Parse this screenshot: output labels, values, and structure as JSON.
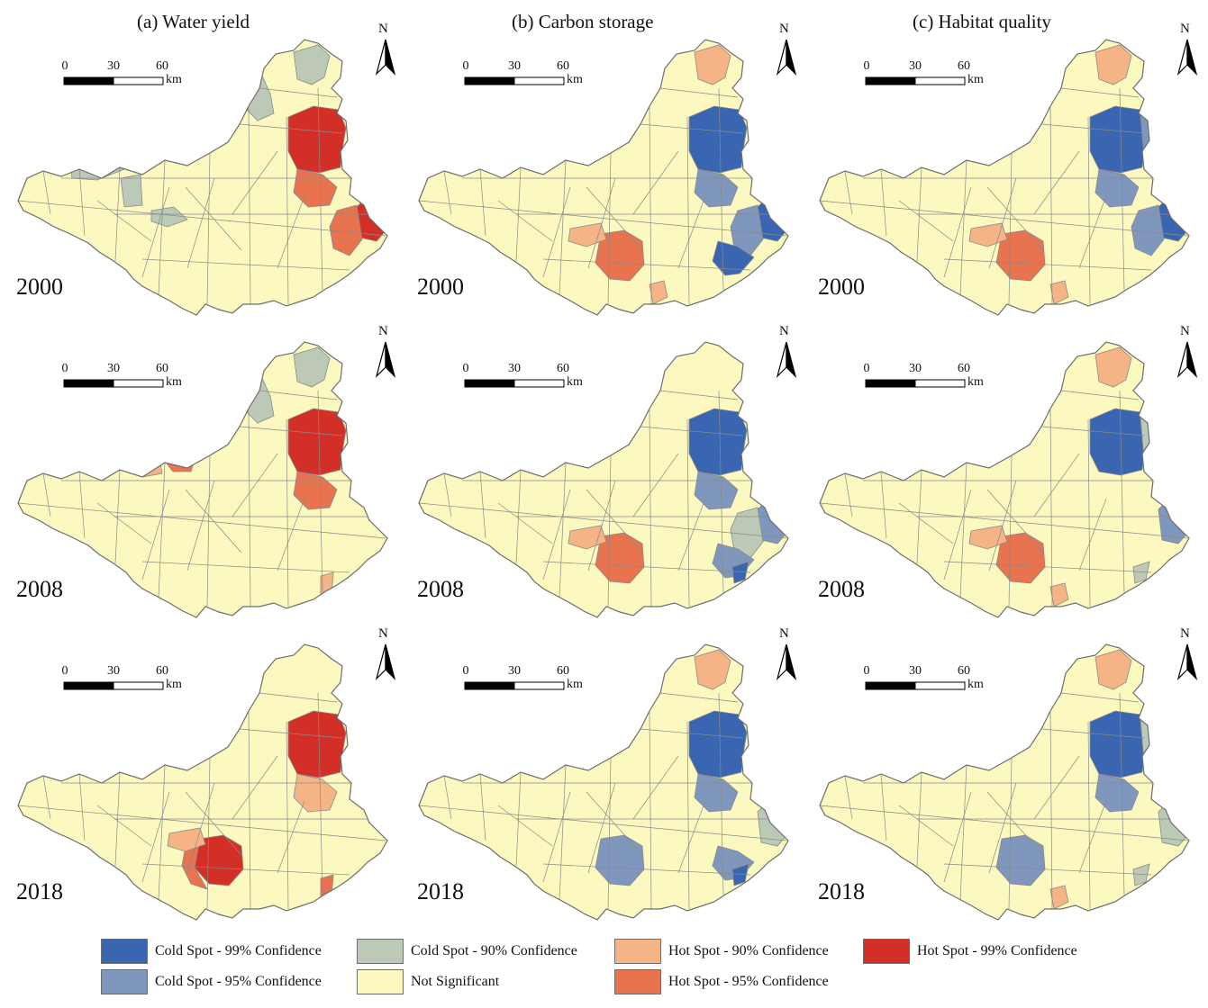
{
  "columns": [
    {
      "title": "(a) Water yield"
    },
    {
      "title": "(b) Carbon storage"
    },
    {
      "title": "(c) Habitat quality"
    }
  ],
  "years": [
    "2000",
    "2008",
    "2018"
  ],
  "scale_bar": {
    "ticks": [
      "0",
      "30",
      "60"
    ],
    "unit": "km"
  },
  "north_label": "N",
  "colors": {
    "cold99": "#3a65b0",
    "cold95": "#7f97bd",
    "cold90": "#bcc9b6",
    "ns": "#fbf8c0",
    "hot90": "#f5b486",
    "hot95": "#e8734f",
    "hot99": "#d42f27",
    "border": "#8a8a8a"
  },
  "legend": [
    {
      "key": "cold99",
      "label": "Cold Spot - 99% Confidence"
    },
    {
      "key": "cold90",
      "label": "Cold Spot - 90% Confidence"
    },
    {
      "key": "hot90",
      "label": "Hot Spot - 90% Confidence"
    },
    {
      "key": "hot99",
      "label": "Hot Spot - 99% Confidence"
    },
    {
      "key": "cold95",
      "label": "Cold Spot - 95% Confidence"
    },
    {
      "key": "ns",
      "label": "Not Significant"
    },
    {
      "key": "hot95",
      "label": "Hot Spot - 95% Confidence"
    }
  ],
  "maps": [
    {
      "column": "(a) Water yield",
      "year": "2000",
      "zones": {
        "north_strip": "cold90",
        "northwest_block": "cold90",
        "east_center": "hot99",
        "east_center_south": "hot95",
        "east_bulge": "hot99",
        "east_bulge_west": "hot95",
        "west_cluster": "cold90",
        "west_cluster_south": "cold90",
        "center_south": "cold90"
      }
    },
    {
      "column": "(a) Water yield",
      "year": "2008",
      "zones": {
        "north_strip": "cold90",
        "northwest_block": "cold90",
        "east_center": "hot99",
        "east_center_south": "hot95",
        "west_mid_pair": "hot95",
        "west_mid_pair_left": "hot90",
        "east_tip": "hot90"
      }
    },
    {
      "column": "(a) Water yield",
      "year": "2018",
      "zones": {
        "east_center": "hot99",
        "east_center_south": "hot90",
        "southwest_core": "hot99",
        "southwest_ring": "hot95",
        "southwest_north": "hot90",
        "east_tip": "hot95"
      }
    },
    {
      "column": "(b) Carbon storage",
      "year": "2000",
      "zones": {
        "north_strip": "hot90",
        "east_center": "cold99",
        "east_center_south": "cold95",
        "east_bulge": "cold99",
        "east_bulge_west": "cold95",
        "east_lower": "cold99",
        "southwest_core": "hot95",
        "southwest_north": "hot90",
        "south_tip": "hot90"
      }
    },
    {
      "column": "(b) Carbon storage",
      "year": "2008",
      "zones": {
        "east_center": "cold99",
        "east_center_south": "cold95",
        "east_bulge": "cold95",
        "east_bulge_west": "cold90",
        "east_lower": "cold95",
        "east_lower_tip": "cold99",
        "southwest_core": "hot95",
        "southwest_north": "hot90"
      }
    },
    {
      "column": "(b) Carbon storage",
      "year": "2018",
      "zones": {
        "north_strip": "hot90",
        "east_center": "cold99",
        "east_center_south": "cold95",
        "east_bulge": "cold90",
        "east_lower": "cold95",
        "east_lower_tip": "cold99",
        "southwest_core": "cold95"
      }
    },
    {
      "column": "(c) Habitat quality",
      "year": "2000",
      "zones": {
        "north_strip": "hot90",
        "east_center": "cold99",
        "east_center_side": "cold95",
        "east_center_south": "cold95",
        "east_bulge": "cold99",
        "east_bulge_west": "cold95",
        "southwest_core": "hot95",
        "southwest_north": "hot90",
        "south_tip": "hot90"
      }
    },
    {
      "column": "(c) Habitat quality",
      "year": "2008",
      "zones": {
        "north_strip": "hot90",
        "east_center": "cold99",
        "east_center_side": "cold90",
        "east_bulge": "cold95",
        "east_lower_tip": "cold90",
        "southwest_core": "hot95",
        "southwest_north": "hot90",
        "south_tip": "hot90"
      }
    },
    {
      "column": "(c) Habitat quality",
      "year": "2018",
      "zones": {
        "north_strip": "hot90",
        "east_center": "cold99",
        "east_center_side": "cold90",
        "east_center_south": "cold95",
        "east_bulge": "cold90",
        "southwest_core": "cold95",
        "south_tip": "hot90",
        "east_lower_tip": "cold90"
      }
    }
  ]
}
